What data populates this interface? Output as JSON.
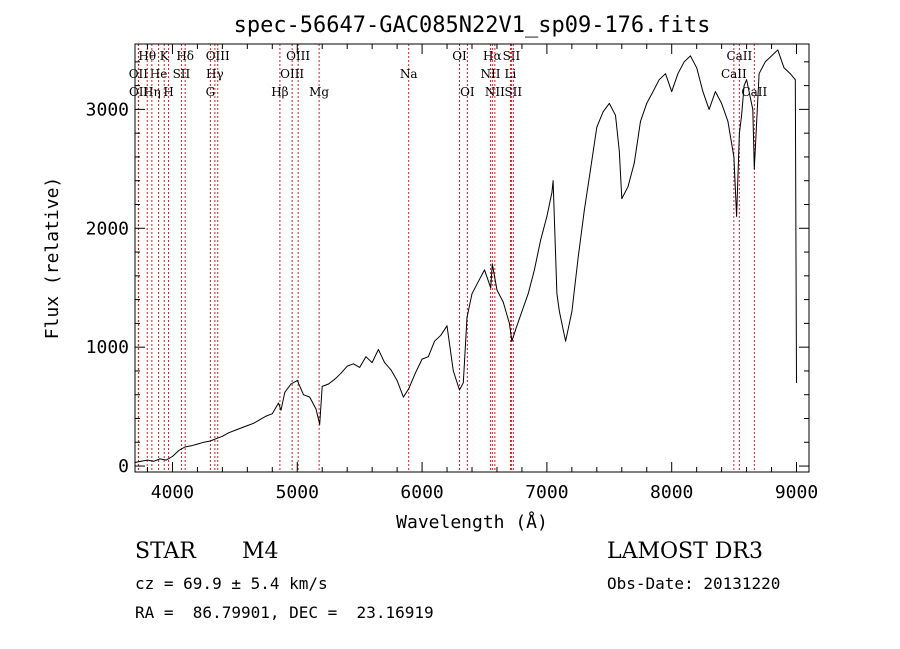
{
  "chart_data": {
    "type": "line",
    "title": "spec-56647-GAC085N22V1_sp09-176.fits",
    "xlabel": "Wavelength (Å)",
    "ylabel": "Flux (relative)",
    "xlim": [
      3700,
      9100
    ],
    "ylim": [
      -50,
      3550
    ],
    "xticks": [
      4000,
      5000,
      6000,
      7000,
      8000,
      9000
    ],
    "yticks": [
      0,
      1000,
      2000,
      3000
    ],
    "series": [
      {
        "name": "spectrum",
        "x": [
          3700,
          3750,
          3800,
          3850,
          3900,
          3950,
          4000,
          4050,
          4100,
          4150,
          4200,
          4250,
          4300,
          4350,
          4400,
          4450,
          4500,
          4550,
          4600,
          4650,
          4700,
          4750,
          4800,
          4850,
          4870,
          4900,
          4950,
          5000,
          5050,
          5100,
          5150,
          5180,
          5200,
          5250,
          5300,
          5350,
          5400,
          5450,
          5500,
          5550,
          5600,
          5650,
          5700,
          5750,
          5800,
          5850,
          5893,
          5950,
          6000,
          6050,
          6100,
          6150,
          6200,
          6250,
          6300,
          6330,
          6360,
          6400,
          6450,
          6500,
          6550,
          6563,
          6600,
          6650,
          6700,
          6720,
          6750,
          6800,
          6850,
          6900,
          6950,
          7000,
          7040,
          7050,
          7080,
          7100,
          7130,
          7150,
          7200,
          7250,
          7300,
          7350,
          7400,
          7450,
          7500,
          7550,
          7580,
          7600,
          7650,
          7700,
          7750,
          7800,
          7850,
          7900,
          7950,
          8000,
          8050,
          8100,
          8150,
          8200,
          8250,
          8300,
          8350,
          8400,
          8450,
          8498,
          8520,
          8542,
          8560,
          8580,
          8600,
          8650,
          8662,
          8700,
          8750,
          8800,
          8850,
          8900,
          8950,
          8990,
          9000
        ],
        "values": [
          30,
          40,
          50,
          40,
          60,
          50,
          80,
          130,
          160,
          170,
          185,
          200,
          210,
          230,
          250,
          280,
          300,
          320,
          340,
          360,
          390,
          420,
          440,
          530,
          470,
          620,
          690,
          720,
          600,
          580,
          480,
          350,
          670,
          690,
          730,
          780,
          840,
          860,
          830,
          920,
          870,
          980,
          870,
          810,
          720,
          580,
          650,
          790,
          900,
          920,
          1050,
          1100,
          1180,
          800,
          640,
          700,
          1250,
          1450,
          1550,
          1650,
          1500,
          1700,
          1480,
          1380,
          1200,
          1050,
          1150,
          1300,
          1450,
          1650,
          1900,
          2100,
          2300,
          2400,
          1450,
          1300,
          1150,
          1050,
          1300,
          1750,
          2150,
          2500,
          2850,
          2980,
          3050,
          2950,
          2650,
          2250,
          2350,
          2550,
          2900,
          3050,
          3150,
          3250,
          3300,
          3150,
          3300,
          3400,
          3450,
          3350,
          3150,
          3000,
          3150,
          3050,
          2900,
          2600,
          2100,
          2800,
          2950,
          3200,
          3250,
          3000,
          2500,
          3300,
          3400,
          3450,
          3500,
          3350,
          3300,
          3250,
          700
        ]
      }
    ],
    "lines": [
      {
        "label": "Hθ",
        "wavelength": 3798,
        "row": 0
      },
      {
        "label": "OII",
        "wavelength": 3727,
        "row": 1
      },
      {
        "label": "OII",
        "wavelength": 3729,
        "row": 2
      },
      {
        "label": "He",
        "wavelength": 3889,
        "row": 1
      },
      {
        "label": "Hη",
        "wavelength": 3835,
        "row": 2
      },
      {
        "label": "K",
        "wavelength": 3934,
        "row": 0
      },
      {
        "label": "SII",
        "wavelength": 4072,
        "row": 1
      },
      {
        "label": "H",
        "wavelength": 3969,
        "row": 2
      },
      {
        "label": "Hδ",
        "wavelength": 4102,
        "row": 0
      },
      {
        "label": "OIII",
        "wavelength": 4363,
        "row": 0
      },
      {
        "label": "Hγ",
        "wavelength": 4340,
        "row": 1
      },
      {
        "label": "G",
        "wavelength": 4304,
        "row": 2
      },
      {
        "label": "OIII",
        "wavelength": 5007,
        "row": 0
      },
      {
        "label": "OIII",
        "wavelength": 4959,
        "row": 1
      },
      {
        "label": "Hβ",
        "wavelength": 4861,
        "row": 2
      },
      {
        "label": "Mg",
        "wavelength": 5175,
        "row": 2
      },
      {
        "label": "Na",
        "wavelength": 5893,
        "row": 1
      },
      {
        "label": "OI",
        "wavelength": 6300,
        "row": 0
      },
      {
        "label": "OI",
        "wavelength": 6363,
        "row": 2
      },
      {
        "label": "Hα",
        "wavelength": 6563,
        "row": 0
      },
      {
        "label": "NII",
        "wavelength": 6548,
        "row": 1
      },
      {
        "label": "NII",
        "wavelength": 6583,
        "row": 2
      },
      {
        "label": "SII",
        "wavelength": 6716,
        "row": 0
      },
      {
        "label": "Li",
        "wavelength": 6708,
        "row": 1
      },
      {
        "label": "SII",
        "wavelength": 6731,
        "row": 2
      },
      {
        "label": "CaII",
        "wavelength": 8542,
        "row": 0
      },
      {
        "label": "CaII",
        "wavelength": 8498,
        "row": 1
      },
      {
        "label": "CaII",
        "wavelength": 8662,
        "row": 2
      }
    ],
    "colors": {
      "spectrum": "#000000",
      "line_markers": "#cc2222",
      "axes": "#000000"
    }
  },
  "info": {
    "class_label": "STAR",
    "subclass": "M4",
    "survey": "LAMOST DR3",
    "cz": "cz = 69.9 ± 5.4 km/s",
    "obs_date": "Obs-Date: 20131220",
    "coords": "RA =  86.79901, DEC =  23.16919"
  }
}
